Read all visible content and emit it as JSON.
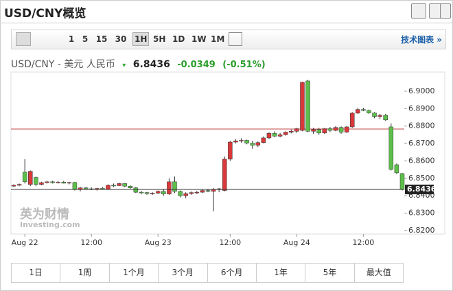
{
  "header": {
    "title": "USD/CNY概览"
  },
  "toolbar": {
    "intervals": [
      "1",
      "5",
      "15",
      "30",
      "1H",
      "5H",
      "1D",
      "1W",
      "1M"
    ],
    "active": "1H",
    "link": "技术图表 »"
  },
  "quote": {
    "name": "USD/CNY - 美元 人民币",
    "price": 6.8436,
    "change": "-0.0349",
    "change_pct": "(-0.51%)"
  },
  "watermark": {
    "brand": "英为财情",
    "site": "Investing.com"
  },
  "chart_data": {
    "type": "candlestick",
    "categories": [
      null,
      null,
      "Aug 22",
      null,
      null,
      null,
      null,
      null,
      null,
      null,
      null,
      null,
      null,
      null,
      "12:00",
      null,
      null,
      null,
      null,
      null,
      null,
      null,
      null,
      null,
      null,
      null,
      "Aug 23",
      null,
      null,
      null,
      null,
      null,
      null,
      null,
      null,
      null,
      null,
      null,
      null,
      "12:00",
      null,
      null,
      null,
      null,
      null,
      null,
      null,
      null,
      null,
      null,
      null,
      "Aug 24",
      null,
      null,
      null,
      null,
      null,
      null,
      null,
      null,
      null,
      null,
      null,
      "12:00",
      null,
      null,
      null,
      null,
      null,
      null,
      null
    ],
    "open": [
      6.8455,
      6.846,
      6.8535,
      6.8465,
      6.8505,
      6.8465,
      6.8475,
      6.848,
      6.8475,
      6.8478,
      6.8472,
      6.8476,
      6.8435,
      6.8445,
      6.844,
      6.8436,
      6.8442,
      6.8438,
      6.846,
      6.8458,
      6.847,
      6.8455,
      6.8445,
      6.842,
      6.8418,
      6.8412,
      6.8415,
      6.8425,
      6.841,
      6.848,
      6.8425,
      6.84,
      6.8412,
      6.8418,
      6.842,
      6.843,
      6.8425,
      6.8435,
      6.843,
      6.861,
      6.8708,
      6.8715,
      6.8718,
      6.8702,
      6.869,
      6.8705,
      6.8732,
      6.8758,
      6.8742,
      6.875,
      6.8765,
      6.877,
      6.8775,
      6.9059,
      6.877,
      6.878,
      6.876,
      6.8785,
      6.8775,
      6.8792,
      6.8765,
      6.8795,
      6.8874,
      6.8895,
      6.889,
      6.8875,
      6.8855,
      6.8862,
      6.8795,
      6.8578,
      6.8527
    ],
    "high": [
      6.8465,
      6.847,
      6.861,
      6.8545,
      6.851,
      6.848,
      6.8485,
      6.8485,
      6.8485,
      6.8485,
      6.848,
      6.848,
      6.845,
      6.845,
      6.8448,
      6.8445,
      6.845,
      6.8465,
      6.847,
      6.8475,
      6.8472,
      6.846,
      6.845,
      6.8428,
      6.8422,
      6.842,
      6.843,
      6.844,
      6.85,
      6.851,
      6.843,
      6.842,
      6.8425,
      6.8428,
      6.8435,
      6.844,
      6.8445,
      6.8445,
      6.8625,
      6.8715,
      6.8725,
      6.873,
      6.8722,
      6.8715,
      6.8712,
      6.874,
      6.8765,
      6.877,
      6.876,
      6.877,
      6.878,
      6.879,
      6.9055,
      6.9065,
      6.879,
      6.879,
      6.879,
      6.8795,
      6.88,
      6.8798,
      6.88,
      6.888,
      6.8905,
      6.8905,
      6.8895,
      6.888,
      6.887,
      6.887,
      6.8815,
      6.8585,
      6.853
    ],
    "low": [
      6.845,
      6.8455,
      6.847,
      6.8455,
      6.8455,
      6.846,
      6.847,
      6.847,
      6.847,
      6.847,
      6.8465,
      6.843,
      6.8425,
      6.8435,
      6.8432,
      6.843,
      6.8435,
      6.8435,
      6.845,
      6.8455,
      6.845,
      6.844,
      6.8415,
      6.841,
      6.8405,
      6.8405,
      6.841,
      6.84,
      6.8405,
      6.8415,
      6.839,
      6.8385,
      6.8405,
      6.841,
      6.8415,
      6.842,
      6.831,
      6.842,
      6.8425,
      6.86,
      6.87,
      6.8705,
      6.8695,
      6.867,
      6.868,
      6.87,
      6.8725,
      6.8735,
      6.8735,
      6.8745,
      6.8758,
      6.876,
      6.877,
      6.8765,
      6.8755,
      6.875,
      6.8755,
      6.8765,
      6.877,
      6.8755,
      6.876,
      6.879,
      6.887,
      6.8885,
      6.887,
      6.8845,
      6.884,
      6.883,
      6.8545,
      6.8525,
      6.843
    ],
    "close": [
      6.846,
      6.8465,
      6.848,
      6.854,
      6.8465,
      6.8475,
      6.848,
      6.8475,
      6.8478,
      6.8472,
      6.8476,
      6.8435,
      6.8445,
      6.844,
      6.8436,
      6.8442,
      6.8438,
      6.846,
      6.8458,
      6.847,
      6.8455,
      6.8445,
      6.842,
      6.8418,
      6.8412,
      6.8415,
      6.8425,
      6.841,
      6.848,
      6.8425,
      6.84,
      6.8412,
      6.8418,
      6.842,
      6.843,
      6.8425,
      6.8435,
      6.844,
      6.861,
      6.8708,
      6.8715,
      6.8718,
      6.8702,
      6.869,
      6.8705,
      6.8732,
      6.8758,
      6.8742,
      6.875,
      6.8765,
      6.877,
      6.8785,
      6.9051,
      6.877,
      6.878,
      6.876,
      6.8785,
      6.8775,
      6.8792,
      6.8765,
      6.8795,
      6.8874,
      6.8895,
      6.889,
      6.8875,
      6.8855,
      6.8862,
      6.8835,
      6.8551,
      6.8531,
      6.8436
    ],
    "colors": {
      "up": "#d9393b",
      "down": "#5cbf4a"
    },
    "reference_line": 6.8783,
    "reference_color": "#c24a4a",
    "ylim": [
      6.818,
      6.911
    ],
    "yticks": [
      {
        "value": 6.82,
        "label": "6.8200"
      },
      {
        "value": 6.83,
        "label": "6.8300"
      },
      {
        "value": 6.84,
        "label": "6.8400"
      },
      {
        "value": 6.85,
        "label": "6.8500"
      },
      {
        "value": 6.86,
        "label": "6.8600"
      },
      {
        "value": 6.87,
        "label": "6.8700"
      },
      {
        "value": 6.88,
        "label": "6.8800"
      },
      {
        "value": 6.89,
        "label": "6.8900"
      },
      {
        "value": 6.9,
        "label": "6.9000"
      }
    ],
    "grid": false
  },
  "ranges": [
    "1日",
    "1周",
    "1个月",
    "3个月",
    "6个月",
    "1年",
    "5年",
    "最大值"
  ]
}
